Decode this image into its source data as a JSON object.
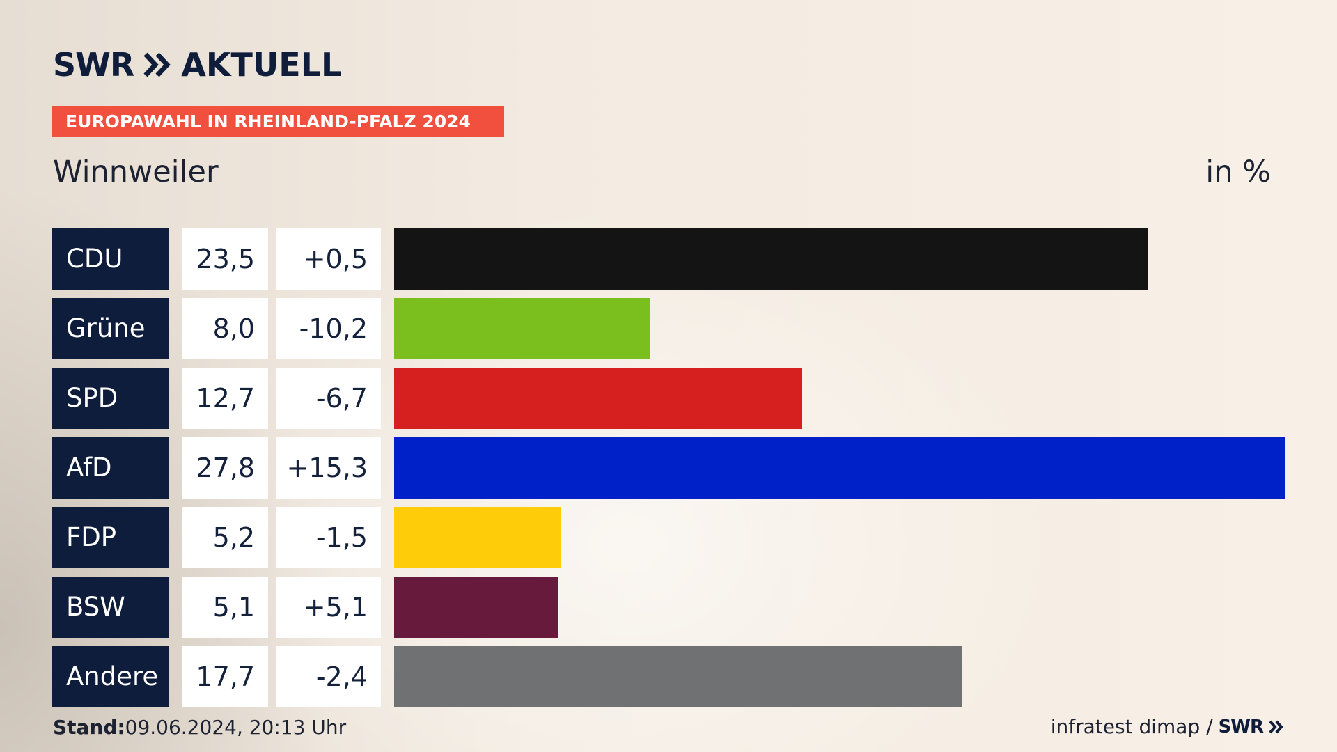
{
  "header": {
    "brand": "SWR",
    "product": "AKTUELL",
    "banner": "EUROPAWAHL IN RHEINLAND-PFALZ 2024",
    "location": "Winnweiler",
    "unit": "in %"
  },
  "colors": {
    "banner": "#f2503f",
    "label_bg": "#0e1d3b"
  },
  "chart_data": {
    "type": "bar",
    "orientation": "horizontal",
    "title": "Winnweiler",
    "unit": "in %",
    "xlim": [
      0,
      27.8
    ],
    "categories": [
      "CDU",
      "Grüne",
      "SPD",
      "AfD",
      "FDP",
      "BSW",
      "Andere"
    ],
    "values": [
      23.5,
      8.0,
      12.7,
      27.8,
      5.2,
      5.1,
      17.7
    ],
    "value_labels": [
      "23,5",
      "8,0",
      "12,7",
      "27,8",
      "5,2",
      "5,1",
      "17,7"
    ],
    "changes": [
      0.5,
      -10.2,
      -6.7,
      15.3,
      -1.5,
      5.1,
      -2.4
    ],
    "change_labels": [
      "+0,5",
      "-10,2",
      "-6,7",
      "+15,3",
      "-1,5",
      "+5,1",
      "-2,4"
    ],
    "colors": [
      "#141414",
      "#7abf1d",
      "#d61f1f",
      "#0020c8",
      "#ffcc0a",
      "#681a3d",
      "#707173"
    ]
  },
  "footer": {
    "stand_label": "Stand:",
    "stand_value": "09.06.2024, 20:13 Uhr",
    "source": "infratest dimap /",
    "brand": "SWR"
  }
}
